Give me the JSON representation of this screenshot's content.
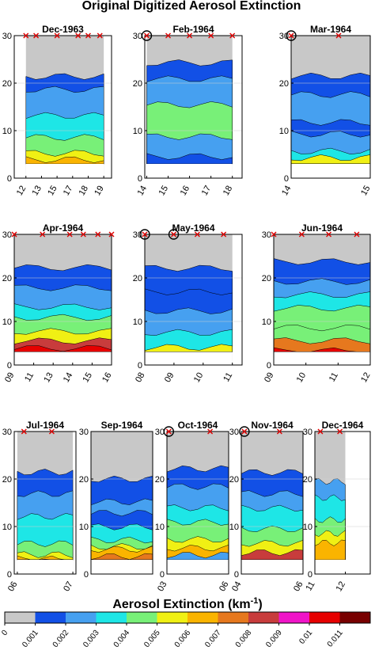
{
  "figure_title": "Original Digitized Aerosol Extinction",
  "chart_data": {
    "type": "heatmap",
    "title": "Original Digitized Aerosol Extinction",
    "y_ticks": [
      "0",
      "10",
      "20",
      "30"
    ],
    "ylim": [
      0,
      30
    ],
    "panels": [
      {
        "title": "Dec-1963",
        "x_ticks": [
          "12",
          "13",
          "15",
          "17",
          "18",
          "19"
        ],
        "markers": [
          {
            "pos": 0.0,
            "circled": false
          },
          {
            "pos": 0.13,
            "circled": false
          },
          {
            "pos": 0.4,
            "circled": false
          },
          {
            "pos": 0.67,
            "circled": false
          },
          {
            "pos": 0.8,
            "circled": false
          },
          {
            "pos": 0.95,
            "circled": false
          }
        ]
      },
      {
        "title": "Feb-1964",
        "x_ticks": [
          "14",
          "15",
          "16",
          "17",
          "18"
        ],
        "markers": [
          {
            "pos": 0.0,
            "circled": true
          },
          {
            "pos": 0.25,
            "circled": false
          },
          {
            "pos": 0.5,
            "circled": false
          },
          {
            "pos": 0.75,
            "circled": false
          },
          {
            "pos": 1.0,
            "circled": false
          }
        ]
      },
      {
        "title": "Mar-1964",
        "x_ticks": [
          "14",
          "15"
        ],
        "markers": [
          {
            "pos": 0.0,
            "circled": true
          },
          {
            "pos": 0.6,
            "circled": false
          }
        ]
      },
      {
        "title": "Apr-1964",
        "x_ticks": [
          "09",
          "11",
          "13",
          "14",
          "15",
          "16"
        ],
        "markers": [
          {
            "pos": 0.0,
            "circled": false
          },
          {
            "pos": 0.29,
            "circled": false
          },
          {
            "pos": 0.57,
            "circled": false
          },
          {
            "pos": 0.71,
            "circled": false
          },
          {
            "pos": 0.86,
            "circled": false
          },
          {
            "pos": 1.0,
            "circled": false
          }
        ]
      },
      {
        "title": "May-1964",
        "x_ticks": [
          "08",
          "09",
          "10",
          "11"
        ],
        "markers": [
          {
            "pos": 0.0,
            "circled": true
          },
          {
            "pos": 0.33,
            "circled": true
          },
          {
            "pos": 0.6,
            "circled": false
          },
          {
            "pos": 0.9,
            "circled": false
          }
        ]
      },
      {
        "title": "Jun-1964",
        "x_ticks": [
          "09",
          "10",
          "11",
          "12"
        ],
        "markers": [
          {
            "pos": 0.0,
            "circled": false
          },
          {
            "pos": 0.29,
            "circled": false
          },
          {
            "pos": 0.57,
            "circled": false
          },
          {
            "pos": 0.86,
            "circled": false
          }
        ]
      },
      {
        "title": "Jul-1964",
        "x_ticks": [
          "06",
          "07"
        ],
        "markers": [
          {
            "pos": 0.12,
            "circled": false
          },
          {
            "pos": 0.62,
            "circled": false
          }
        ]
      },
      {
        "title": "Sep-1964",
        "x_ticks": [],
        "markers": []
      },
      {
        "title": "Oct-1964",
        "x_ticks": [
          "03",
          "06"
        ],
        "markers": [
          {
            "pos": 0.03,
            "circled": true
          },
          {
            "pos": 0.7,
            "circled": false
          }
        ]
      },
      {
        "title": "Nov-1964",
        "x_ticks": [
          "04",
          "06"
        ],
        "markers": [
          {
            "pos": 0.05,
            "circled": true
          },
          {
            "pos": 0.62,
            "circled": false
          }
        ]
      },
      {
        "title": "Dec-1964",
        "x_ticks": [
          "11",
          "12"
        ],
        "markers": [
          {
            "pos": 0.18,
            "circled": false
          },
          {
            "pos": 0.82,
            "circled": false
          }
        ]
      }
    ],
    "colorbar": {
      "label": "Aerosol Extinction (km",
      "label_sup": "-1",
      "label_end": ")",
      "ticks": [
        "0",
        "0.001",
        "0.002",
        "0.003",
        "0.004",
        "0.005",
        "0.006",
        "0.007",
        "0.008",
        "0.009",
        "0.01",
        "0.011"
      ],
      "colors": [
        "#c8c8c8",
        "#1250e6",
        "#46a0f0",
        "#1ee6e6",
        "#78f078",
        "#f0f014",
        "#fab400",
        "#e6781e",
        "#c83c3c",
        "#f014c8",
        "#e60000",
        "#780000"
      ]
    }
  }
}
